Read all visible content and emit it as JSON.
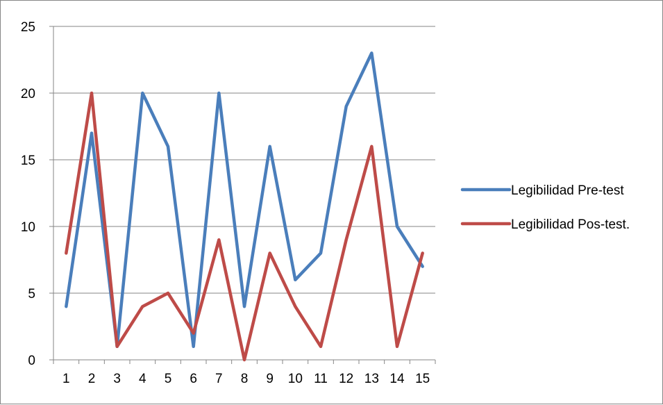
{
  "chart_data": {
    "type": "line",
    "title": "",
    "xlabel": "",
    "ylabel": "",
    "x": [
      1,
      2,
      3,
      4,
      5,
      6,
      7,
      8,
      9,
      10,
      11,
      12,
      13,
      14,
      15
    ],
    "ylim": [
      0,
      25
    ],
    "yticks": [
      0,
      5,
      10,
      15,
      20,
      25
    ],
    "grid": "horizontal",
    "legend_position": "right",
    "series": [
      {
        "name": "Legibilidad Pre-test",
        "color": "#4A7EBB",
        "values": [
          4,
          17,
          1,
          20,
          16,
          1,
          20,
          4,
          16,
          6,
          8,
          19,
          23,
          10,
          7
        ]
      },
      {
        "name": "Legibilidad Pos-test.",
        "color": "#BE4B48",
        "values": [
          8,
          20,
          1,
          4,
          5,
          2,
          9,
          0,
          8,
          4,
          1,
          9,
          16,
          1,
          8
        ]
      }
    ]
  }
}
